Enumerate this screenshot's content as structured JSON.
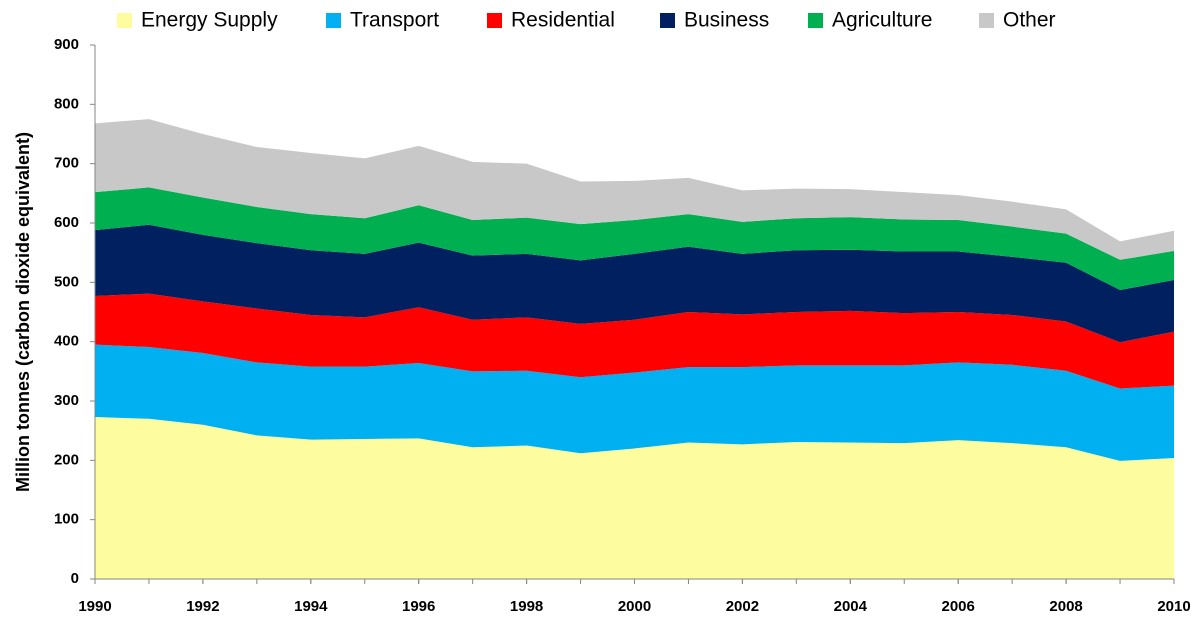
{
  "chart_data": {
    "type": "stacked_area",
    "y_label": "Million tonnes (carbon dioxide equivalent)",
    "x": [
      1990,
      1991,
      1992,
      1993,
      1994,
      1995,
      1996,
      1997,
      1998,
      1999,
      2000,
      2001,
      2002,
      2003,
      2004,
      2005,
      2006,
      2007,
      2008,
      2009,
      2010
    ],
    "series": [
      {
        "name": "Energy Supply",
        "color": "#fdfd9f",
        "values": [
          273,
          270,
          260,
          242,
          235,
          236,
          237,
          222,
          225,
          212,
          220,
          230,
          227,
          231,
          230,
          229,
          234,
          229,
          222,
          199,
          204
        ]
      },
      {
        "name": "Transport",
        "color": "#00b0f0",
        "values": [
          122,
          121,
          121,
          123,
          123,
          122,
          127,
          128,
          126,
          128,
          128,
          127,
          130,
          129,
          130,
          131,
          131,
          132,
          129,
          122,
          122
        ]
      },
      {
        "name": "Residential",
        "color": "#ff0000",
        "values": [
          82,
          90,
          87,
          91,
          87,
          83,
          94,
          87,
          90,
          90,
          89,
          93,
          89,
          90,
          92,
          88,
          85,
          84,
          83,
          78,
          91
        ]
      },
      {
        "name": "Business",
        "color": "#002060",
        "values": [
          111,
          116,
          112,
          110,
          109,
          107,
          109,
          108,
          107,
          107,
          111,
          110,
          102,
          104,
          103,
          104,
          102,
          98,
          99,
          88,
          87
        ]
      },
      {
        "name": "Agriculture",
        "color": "#00b050",
        "values": [
          64,
          63,
          63,
          61,
          61,
          60,
          63,
          60,
          61,
          61,
          57,
          55,
          54,
          54,
          55,
          54,
          53,
          51,
          49,
          51,
          49
        ]
      },
      {
        "name": "Other",
        "color": "#c8c8c8",
        "values": [
          116,
          115,
          107,
          101,
          103,
          101,
          100,
          98,
          91,
          72,
          66,
          61,
          53,
          50,
          47,
          46,
          42,
          42,
          41,
          31,
          34
        ]
      }
    ],
    "xlim": [
      1990,
      2010
    ],
    "xticks": [
      1990,
      1992,
      1994,
      1996,
      1998,
      2000,
      2002,
      2004,
      2006,
      2008,
      2010
    ],
    "ylim": [
      0,
      900
    ],
    "yticks": [
      0,
      100,
      200,
      300,
      400,
      500,
      600,
      700,
      800,
      900
    ],
    "legend": "top",
    "grid": false
  }
}
